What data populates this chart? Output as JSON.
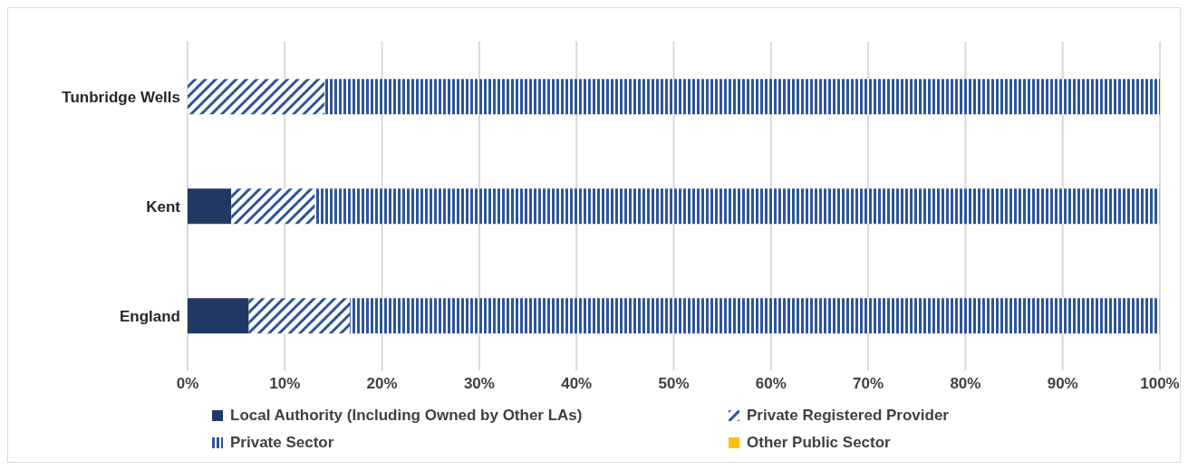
{
  "chart_data": {
    "type": "bar",
    "orientation": "horizontal",
    "stacked": true,
    "categories": [
      "Tunbridge Wells",
      "Kent",
      "England"
    ],
    "series": [
      {
        "name": "Local Authority (Including Owned by Other LAs)",
        "color": "#203864",
        "values": [
          0,
          4.5,
          6.3
        ]
      },
      {
        "name": "Private Registered Provider",
        "color": "#2f5597",
        "values": [
          14.1,
          8.6,
          10.4
        ]
      },
      {
        "name": "Private Sector",
        "color": "#2f5597",
        "values": [
          85.9,
          86.8,
          83.2
        ]
      },
      {
        "name": "Other Public Sector",
        "color": "#ffc000",
        "values": [
          0,
          0.1,
          0.1
        ]
      }
    ],
    "xlim": [
      0,
      100
    ],
    "xticks": [
      {
        "value": 0,
        "label": "0%"
      },
      {
        "value": 10,
        "label": "10%"
      },
      {
        "value": 20,
        "label": "20%"
      },
      {
        "value": 30,
        "label": "30%"
      },
      {
        "value": 40,
        "label": "40%"
      },
      {
        "value": 50,
        "label": "50%"
      },
      {
        "value": 60,
        "label": "60%"
      },
      {
        "value": 70,
        "label": "70%"
      },
      {
        "value": 80,
        "label": "80%"
      },
      {
        "value": 90,
        "label": "90%"
      },
      {
        "value": 100,
        "label": "100%"
      }
    ],
    "grid": "x",
    "legend": "bottom"
  }
}
